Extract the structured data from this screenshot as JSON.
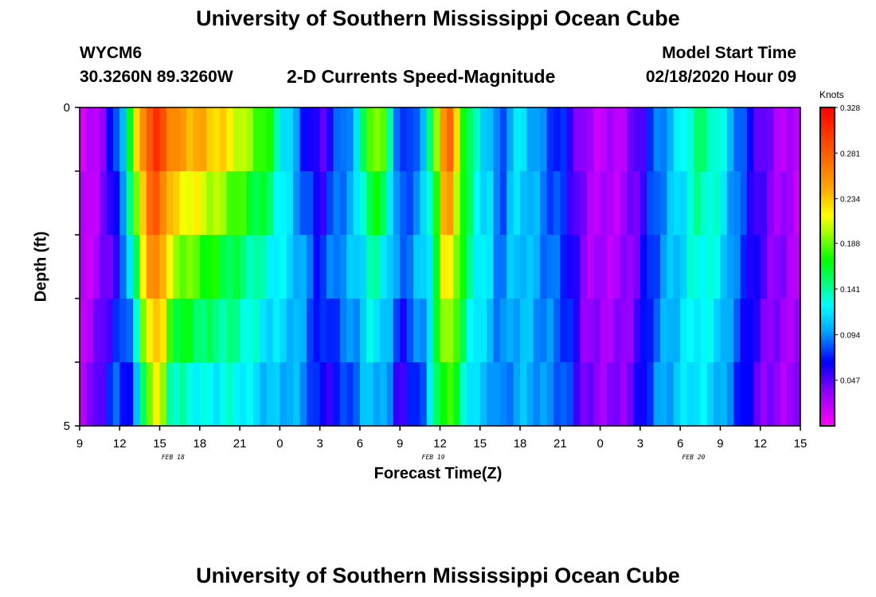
{
  "page": {
    "title_top": "University of Southern Mississippi Ocean Cube",
    "title_bottom": "University of Southern Mississippi Ocean Cube",
    "station": "WYCM6",
    "coords": "30.3260N 89.3260W",
    "product": "2-D Currents Speed-Magnitude",
    "model_label": "Model Start Time",
    "model_time": "02/18/2020 Hour 09"
  },
  "chart_data": {
    "type": "heatmap",
    "xlabel": "Forecast Time(Z)",
    "ylabel": "Depth (ft)",
    "ylim": [
      0,
      5
    ],
    "y_ticks": [
      "0",
      "5"
    ],
    "x_range_hours": [
      0,
      54
    ],
    "x_tick_labels": [
      "9",
      "12",
      "15",
      "18",
      "21",
      "0",
      "3",
      "6",
      "9",
      "12",
      "15",
      "18",
      "21",
      "0",
      "3",
      "6",
      "9",
      "12",
      "15"
    ],
    "date_labels": [
      {
        "label": "FEB 18",
        "hour": 7
      },
      {
        "label": "FEB 19",
        "hour": 26.5
      },
      {
        "label": "FEB 20",
        "hour": 46
      }
    ],
    "depth_layers": 5,
    "colorbar": {
      "unit": "Knots",
      "min": 0.0,
      "max": 0.328,
      "tick_values": [
        0.328,
        0.281,
        0.234,
        0.188,
        0.141,
        0.094,
        0.047
      ],
      "tick_labels": [
        "0.328",
        "0.281",
        "0.234",
        "0.188",
        "0.141",
        "0.094",
        "0.047"
      ]
    },
    "speed_profile": [
      [
        0,
        0.01,
        0.02,
        0.03
      ],
      [
        0.5,
        0.01,
        0.02,
        0.03
      ],
      [
        1,
        0.02,
        0.025,
        0.04
      ],
      [
        1.5,
        0.03,
        0.03,
        0.05
      ],
      [
        2,
        0.05,
        0.04,
        0.07
      ],
      [
        2.5,
        0.07,
        0.05,
        0.09
      ],
      [
        3,
        0.1,
        0.07,
        0.08
      ],
      [
        3.5,
        0.14,
        0.09,
        0.06
      ],
      [
        4,
        0.21,
        0.14,
        0.06
      ],
      [
        4.5,
        0.26,
        0.19,
        0.1
      ],
      [
        5,
        0.29,
        0.24,
        0.17
      ],
      [
        5.5,
        0.3,
        0.26,
        0.2
      ],
      [
        6,
        0.31,
        0.27,
        0.21
      ],
      [
        6.5,
        0.29,
        0.22,
        0.14
      ],
      [
        7,
        0.27,
        0.2,
        0.12
      ],
      [
        8,
        0.26,
        0.19,
        0.12
      ],
      [
        9,
        0.26,
        0.18,
        0.11
      ],
      [
        10,
        0.25,
        0.17,
        0.11
      ],
      [
        11,
        0.24,
        0.16,
        0.12
      ],
      [
        12,
        0.22,
        0.15,
        0.12
      ],
      [
        13,
        0.2,
        0.14,
        0.11
      ],
      [
        14,
        0.19,
        0.13,
        0.1
      ],
      [
        15,
        0.13,
        0.12,
        0.1
      ],
      [
        16,
        0.1,
        0.11,
        0.1
      ],
      [
        17,
        0.06,
        0.09,
        0.09
      ],
      [
        18,
        0.04,
        0.07,
        0.06
      ],
      [
        18.5,
        0.045,
        0.08,
        0.05
      ],
      [
        19,
        0.07,
        0.09,
        0.06
      ],
      [
        20,
        0.09,
        0.1,
        0.07
      ],
      [
        21,
        0.12,
        0.11,
        0.09
      ],
      [
        21.5,
        0.19,
        0.13,
        0.1
      ],
      [
        22,
        0.22,
        0.14,
        0.1
      ],
      [
        23,
        0.18,
        0.12,
        0.09
      ],
      [
        23.5,
        0.12,
        0.1,
        0.07
      ],
      [
        24,
        0.07,
        0.08,
        0.04
      ],
      [
        24.5,
        0.06,
        0.09,
        0.05
      ],
      [
        25,
        0.08,
        0.1,
        0.06
      ],
      [
        26,
        0.11,
        0.11,
        0.09
      ],
      [
        26.5,
        0.18,
        0.14,
        0.13
      ],
      [
        27,
        0.24,
        0.19,
        0.16
      ],
      [
        27.5,
        0.3,
        0.24,
        0.18
      ],
      [
        28,
        0.26,
        0.21,
        0.16
      ],
      [
        28.5,
        0.21,
        0.18,
        0.14
      ],
      [
        29,
        0.16,
        0.15,
        0.12
      ],
      [
        30,
        0.12,
        0.12,
        0.1
      ],
      [
        31,
        0.1,
        0.11,
        0.1
      ],
      [
        31.5,
        0.06,
        0.08,
        0.08
      ],
      [
        32,
        0.1,
        0.1,
        0.09
      ],
      [
        33,
        0.12,
        0.11,
        0.1
      ],
      [
        34,
        0.1,
        0.1,
        0.1
      ],
      [
        35,
        0.08,
        0.09,
        0.09
      ],
      [
        36,
        0.07,
        0.08,
        0.09
      ],
      [
        37,
        0.05,
        0.06,
        0.07
      ],
      [
        37.5,
        0.035,
        0.04,
        0.05
      ],
      [
        38,
        0.025,
        0.03,
        0.04
      ],
      [
        39,
        0.02,
        0.025,
        0.035
      ],
      [
        40,
        0.02,
        0.025,
        0.035
      ],
      [
        41,
        0.03,
        0.03,
        0.04
      ],
      [
        42,
        0.05,
        0.05,
        0.06
      ],
      [
        43,
        0.08,
        0.08,
        0.09
      ],
      [
        44,
        0.1,
        0.1,
        0.1
      ],
      [
        45,
        0.12,
        0.11,
        0.11
      ],
      [
        46,
        0.15,
        0.13,
        0.12
      ],
      [
        47,
        0.15,
        0.13,
        0.11
      ],
      [
        48,
        0.13,
        0.12,
        0.1
      ],
      [
        49,
        0.1,
        0.09,
        0.08
      ],
      [
        50,
        0.07,
        0.07,
        0.06
      ],
      [
        51,
        0.045,
        0.05,
        0.04
      ],
      [
        52,
        0.03,
        0.035,
        0.03
      ],
      [
        53,
        0.02,
        0.03,
        0.03
      ],
      [
        54,
        0.02,
        0.025,
        0.03
      ]
    ]
  }
}
